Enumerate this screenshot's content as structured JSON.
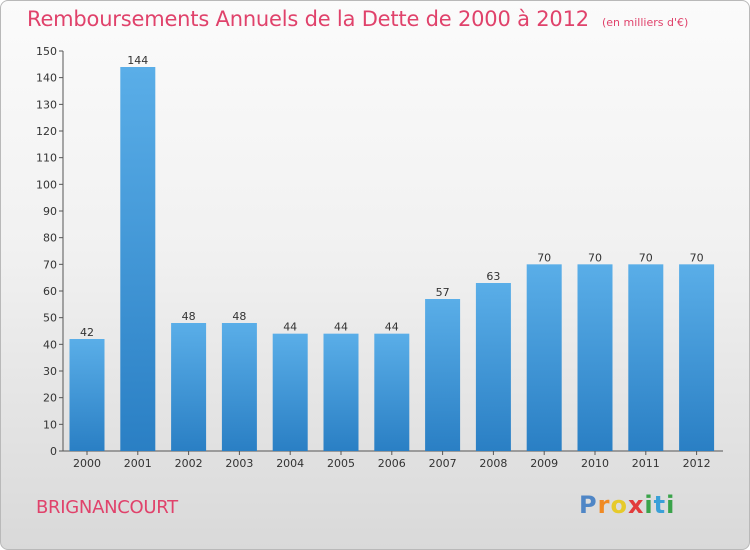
{
  "chart_data": {
    "type": "bar",
    "title": "Remboursements Annuels de la Dette de 2000 à 2012",
    "unit_note": "(en milliers d'€)",
    "categories": [
      "2000",
      "2001",
      "2002",
      "2003",
      "2004",
      "2005",
      "2006",
      "2007",
      "2008",
      "2009",
      "2010",
      "2011",
      "2012"
    ],
    "values": [
      42,
      144,
      48,
      48,
      44,
      44,
      44,
      57,
      63,
      70,
      70,
      70,
      70
    ],
    "ylim": [
      0,
      150
    ],
    "yticks": [
      0,
      10,
      20,
      30,
      40,
      50,
      60,
      70,
      80,
      90,
      100,
      110,
      120,
      130,
      140,
      150
    ],
    "grid": false,
    "bar_color_top": "#5aaee8",
    "bar_color_bottom": "#2a7fc4"
  },
  "town_name": "BRIGNANCOURT",
  "brand": {
    "letters": [
      "P",
      "r",
      "o",
      "x",
      "i",
      "t",
      "i"
    ],
    "colors": {
      "p": "#4f86c6",
      "r": "#f08a24",
      "o": "#e6ca2a",
      "x": "#e23b3b",
      "i": "#3aa34a",
      "t": "#3aa0d8"
    }
  }
}
